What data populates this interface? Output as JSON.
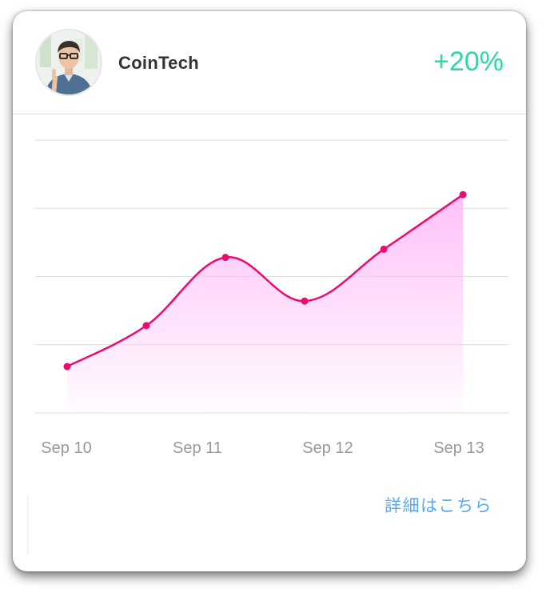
{
  "header": {
    "title": "CoinTech",
    "change": "+20%",
    "avatar_icon": "user-avatar-photo"
  },
  "link": {
    "label": "詳細はこちら"
  },
  "colors": {
    "line": "#ec0c6f",
    "fill_top": "#ffbdf7",
    "positive": "#2ed7a6",
    "link": "#5aa9ee"
  },
  "chart_data": {
    "type": "area",
    "x_ticks": [
      "Sep 10",
      "Sep 11",
      "Sep 12",
      "Sep 13"
    ],
    "x": [
      0,
      1,
      2,
      3,
      4,
      5
    ],
    "values": [
      17,
      32,
      57,
      41,
      60,
      80
    ],
    "ylim": [
      0,
      100
    ],
    "grid": true,
    "smooth": true,
    "markers": true
  }
}
